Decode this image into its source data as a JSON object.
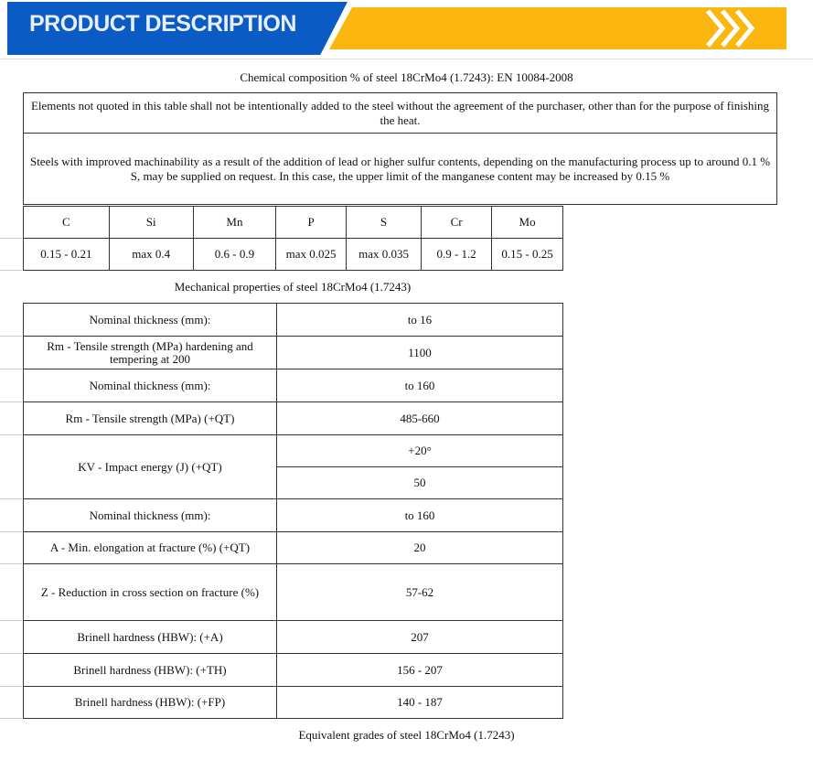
{
  "banner": {
    "title": "PRODUCT DESCRIPTION",
    "blue": "#0a5bc4",
    "yellow": "#fbb710"
  },
  "chem": {
    "title": "Chemical composition % of steel 18CrMo4 (1.7243): EN 10084-2008",
    "note1": "Elements not quoted in this table shall not be intentionally added to the steel without the agreement of the purchaser, other than for the purpose of finishing the heat.",
    "note2": "Steels with improved machinability as a result of the addition of lead or higher sulfur contents, depending on the manufacturing process up to around 0.1 % S, may be supplied on request. In this case, the upper limit of the manganese content may be increased by 0.15 %",
    "headers": [
      "C",
      "Si",
      "Mn",
      "P",
      "S",
      "Cr",
      "Mo"
    ],
    "values": [
      "0.15 - 0.21",
      "max 0.4",
      "0.6 - 0.9",
      "max 0.025",
      "max 0.035",
      "0.9 - 1.2",
      "0.15 - 0.25"
    ]
  },
  "mech": {
    "title": "Mechanical properties of steel 18CrMo4 (1.7243)",
    "rows": [
      {
        "label": "Nominal thickness (mm):",
        "value": "to 16"
      },
      {
        "label": "Rm - Tensile strength (MPa) hardening and tempering at 200",
        "value": "1100"
      },
      {
        "label": "Nominal thickness (mm):",
        "value": "to 160"
      },
      {
        "label": "Rm - Tensile strength (MPa) (+QT)",
        "value": "485-660"
      },
      {
        "label": "KV - Impact energy (J) (+QT)",
        "value": "+20°",
        "value2": "50"
      },
      {
        "label": "Nominal thickness (mm):",
        "value": "to 160"
      },
      {
        "label": "A - Min. elongation at fracture (%) (+QT)",
        "value": "20"
      },
      {
        "label": "Z - Reduction in cross section on fracture (%)",
        "value": "57-62"
      },
      {
        "label": "Brinell hardness (HBW): (+A)",
        "value": "207"
      },
      {
        "label": "Brinell hardness (HBW): (+TH)",
        "value": "156 - 207"
      },
      {
        "label": "Brinell hardness (HBW): (+FP)",
        "value": "140 - 187"
      }
    ]
  },
  "equiv": {
    "title": "Equivalent grades of steel 18CrMo4 (1.7243)"
  }
}
